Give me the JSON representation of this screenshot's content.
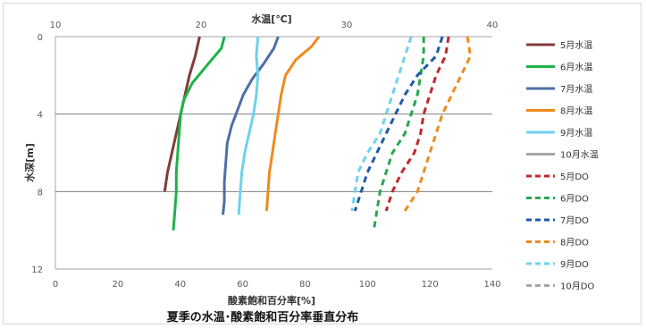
{
  "chart_data": {
    "type": "line",
    "title": "夏季の水温･酸素飽和百分率垂直分布",
    "axes": {
      "y": {
        "label": "水深[m]",
        "range": [
          0,
          12
        ],
        "ticks": [
          0,
          4,
          8,
          12
        ],
        "inverted": true,
        "gridlines": [
          4,
          8
        ]
      },
      "x_bottom": {
        "label": "酸素飽和百分率[%]",
        "range": [
          0,
          140
        ],
        "ticks": [
          0,
          20,
          40,
          60,
          80,
          100,
          120,
          140
        ]
      },
      "x_top": {
        "label": "水温[℃]",
        "range": [
          10,
          40
        ],
        "ticks": [
          10,
          20,
          30,
          40
        ]
      }
    },
    "legend_position": "right",
    "series": [
      {
        "name": "5月水温",
        "axis": "x_top",
        "style": "solid",
        "color": "#843c39",
        "points": [
          [
            19.9,
            0
          ],
          [
            19.6,
            1
          ],
          [
            19.2,
            2
          ],
          [
            18.9,
            3
          ],
          [
            18.6,
            4
          ],
          [
            18.3,
            5
          ],
          [
            18.0,
            6
          ],
          [
            17.7,
            7
          ],
          [
            17.5,
            8
          ]
        ]
      },
      {
        "name": "6月水温",
        "axis": "x_top",
        "style": "solid",
        "color": "#1db34a",
        "points": [
          [
            21.6,
            0
          ],
          [
            21.4,
            0.6
          ],
          [
            20.5,
            1.4
          ],
          [
            19.4,
            2.4
          ],
          [
            18.8,
            3.3
          ],
          [
            18.6,
            4
          ],
          [
            18.5,
            5
          ],
          [
            18.4,
            6
          ],
          [
            18.3,
            7
          ],
          [
            18.3,
            8
          ],
          [
            18.2,
            9
          ],
          [
            18.1,
            10
          ]
        ]
      },
      {
        "name": "7月水温",
        "axis": "x_top",
        "style": "solid",
        "color": "#4f6fa6",
        "points": [
          [
            25.3,
            0
          ],
          [
            25.0,
            0.6
          ],
          [
            24.3,
            1.4
          ],
          [
            23.5,
            2.2
          ],
          [
            22.9,
            3.0
          ],
          [
            22.5,
            3.8
          ],
          [
            22.1,
            4.6
          ],
          [
            21.8,
            5.5
          ],
          [
            21.7,
            6.5
          ],
          [
            21.6,
            7.5
          ],
          [
            21.6,
            8.5
          ],
          [
            21.5,
            9.2
          ]
        ]
      },
      {
        "name": "8月水温",
        "axis": "x_top",
        "style": "solid",
        "color": "#ee8b1e",
        "points": [
          [
            28.1,
            0
          ],
          [
            27.6,
            0.5
          ],
          [
            26.5,
            1.2
          ],
          [
            25.8,
            2.0
          ],
          [
            25.5,
            3.0
          ],
          [
            25.3,
            4.0
          ],
          [
            25.1,
            5.0
          ],
          [
            24.9,
            6.0
          ],
          [
            24.7,
            7.0
          ],
          [
            24.6,
            8.0
          ],
          [
            24.5,
            9.0
          ]
        ]
      },
      {
        "name": "9月水温",
        "axis": "x_top",
        "style": "solid",
        "color": "#6ed2ef",
        "points": [
          [
            23.9,
            0
          ],
          [
            23.8,
            1.0
          ],
          [
            23.9,
            2.0
          ],
          [
            23.8,
            3.0
          ],
          [
            23.6,
            4.0
          ],
          [
            23.3,
            5.0
          ],
          [
            23.0,
            6.0
          ],
          [
            22.8,
            7.0
          ],
          [
            22.7,
            8.0
          ],
          [
            22.6,
            9.0
          ],
          [
            22.6,
            9.2
          ]
        ]
      },
      {
        "name": "10月水温",
        "axis": "x_top",
        "style": "solid",
        "color": "#a6a6a6",
        "points": []
      },
      {
        "name": "5月DO",
        "axis": "x_bottom",
        "style": "dashed",
        "color": "#c0282d",
        "points": [
          [
            126,
            0
          ],
          [
            125,
            1
          ],
          [
            122,
            2
          ],
          [
            120,
            3
          ],
          [
            118,
            4
          ],
          [
            117,
            5
          ],
          [
            115,
            6
          ],
          [
            111,
            7
          ],
          [
            108,
            8
          ],
          [
            106,
            9
          ]
        ]
      },
      {
        "name": "6月DO",
        "axis": "x_bottom",
        "style": "dashed",
        "color": "#27a850",
        "points": [
          [
            118,
            0
          ],
          [
            118,
            1
          ],
          [
            117,
            2
          ],
          [
            116,
            3
          ],
          [
            114,
            4
          ],
          [
            112,
            5
          ],
          [
            108,
            6
          ],
          [
            106,
            7
          ],
          [
            104,
            8
          ],
          [
            103,
            9
          ],
          [
            102,
            10
          ]
        ]
      },
      {
        "name": "7月DO",
        "axis": "x_bottom",
        "style": "dashed",
        "color": "#1f5aa8",
        "points": [
          [
            124,
            0
          ],
          [
            122,
            1
          ],
          [
            116,
            2
          ],
          [
            112,
            3
          ],
          [
            109,
            4
          ],
          [
            106,
            5
          ],
          [
            103,
            6
          ],
          [
            100,
            7
          ],
          [
            98,
            8
          ],
          [
            96,
            9
          ]
        ]
      },
      {
        "name": "8月DO",
        "axis": "x_bottom",
        "style": "dashed",
        "color": "#ee8b1e",
        "points": [
          [
            132,
            0
          ],
          [
            133,
            1
          ],
          [
            130,
            2
          ],
          [
            127,
            3
          ],
          [
            124,
            4
          ],
          [
            122,
            5
          ],
          [
            120,
            6
          ],
          [
            118,
            7
          ],
          [
            116,
            8
          ],
          [
            112,
            9
          ]
        ]
      },
      {
        "name": "9月DO",
        "axis": "x_bottom",
        "style": "dashed",
        "color": "#6ed2ef",
        "points": [
          [
            114,
            0
          ],
          [
            112,
            1
          ],
          [
            110,
            2
          ],
          [
            108,
            3
          ],
          [
            106,
            4
          ],
          [
            104,
            5
          ],
          [
            100,
            6
          ],
          [
            97,
            7
          ],
          [
            96,
            8
          ],
          [
            95,
            9
          ]
        ]
      },
      {
        "name": "10月DO",
        "axis": "x_bottom",
        "style": "dashed",
        "color": "#a6a6a6",
        "points": []
      }
    ],
    "colors": {
      "axis": "#a6a6a6",
      "grid": "#7f7f7f"
    }
  }
}
